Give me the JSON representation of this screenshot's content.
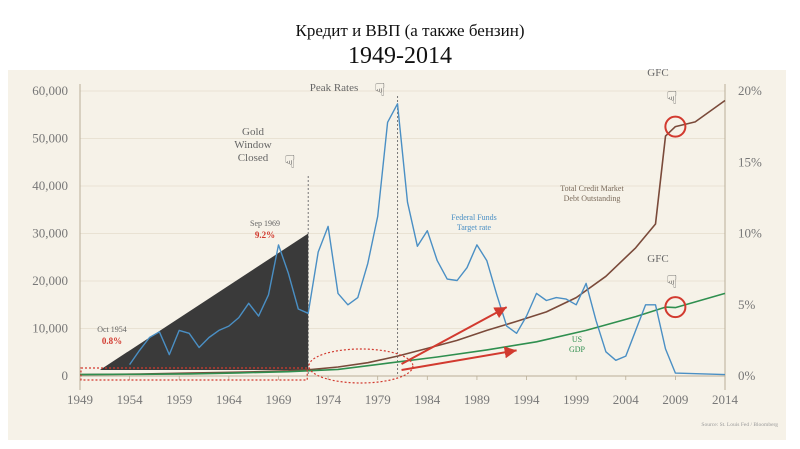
{
  "title": "Кредит и ВВП (а также бензин)",
  "subtitle": "1949-2014",
  "colors": {
    "background": "#f6f2e8",
    "credit": "#7a4a3a",
    "gdp": "#2f8f4f",
    "fed_funds": "#4a8fc4",
    "triangle": "#3a3a3a",
    "highlight": "#d23a2f"
  },
  "chart_data": {
    "type": "line",
    "x_ticks": [
      1949,
      1954,
      1959,
      1964,
      1969,
      1974,
      1979,
      1984,
      1989,
      1994,
      1999,
      2004,
      2009,
      2014
    ],
    "xlim": [
      1949,
      2014
    ],
    "y_left_ticks": [
      "0",
      "10,000",
      "20,000",
      "30,000",
      "40,000",
      "50,000",
      "60,000"
    ],
    "ylim_left": [
      0,
      60000
    ],
    "y_right_ticks": [
      "0%",
      "5%",
      "10%",
      "15%",
      "20%"
    ],
    "ylim_right": [
      0,
      20
    ],
    "series": [
      {
        "name": "Total Credit Market Debt Outstanding",
        "axis": "left",
        "points": [
          [
            1949,
            300
          ],
          [
            1955,
            400
          ],
          [
            1960,
            600
          ],
          [
            1965,
            800
          ],
          [
            1970,
            1100
          ],
          [
            1972,
            1300
          ],
          [
            1975,
            1900
          ],
          [
            1978,
            2800
          ],
          [
            1981,
            4200
          ],
          [
            1984,
            5800
          ],
          [
            1987,
            7500
          ],
          [
            1990,
            9600
          ],
          [
            1993,
            11500
          ],
          [
            1996,
            13500
          ],
          [
            1999,
            16500
          ],
          [
            2002,
            21000
          ],
          [
            2005,
            27000
          ],
          [
            2007,
            32000
          ],
          [
            2008,
            50500
          ],
          [
            2009,
            52500
          ],
          [
            2011,
            53500
          ],
          [
            2014,
            58000
          ]
        ]
      },
      {
        "name": "US GDP",
        "axis": "left",
        "points": [
          [
            1949,
            300
          ],
          [
            1955,
            350
          ],
          [
            1960,
            450
          ],
          [
            1965,
            650
          ],
          [
            1970,
            900
          ],
          [
            1975,
            1400
          ],
          [
            1980,
            2700
          ],
          [
            1985,
            4000
          ],
          [
            1990,
            5500
          ],
          [
            1995,
            7200
          ],
          [
            2000,
            9600
          ],
          [
            2005,
            12500
          ],
          [
            2008,
            14500
          ],
          [
            2009,
            14400
          ],
          [
            2014,
            17400
          ]
        ]
      },
      {
        "name": "Federal Funds Target rate",
        "axis": "right",
        "points": [
          [
            1954,
            0.8
          ],
          [
            1955,
            1.8
          ],
          [
            1956,
            2.7
          ],
          [
            1957,
            3.1
          ],
          [
            1958,
            1.5
          ],
          [
            1959,
            3.2
          ],
          [
            1960,
            3.0
          ],
          [
            1961,
            2.0
          ],
          [
            1962,
            2.7
          ],
          [
            1963,
            3.2
          ],
          [
            1964,
            3.5
          ],
          [
            1965,
            4.1
          ],
          [
            1966,
            5.1
          ],
          [
            1967,
            4.2
          ],
          [
            1968,
            5.7
          ],
          [
            1969,
            9.2
          ],
          [
            1970,
            7.2
          ],
          [
            1971,
            4.7
          ],
          [
            1972,
            4.4
          ],
          [
            1973,
            8.7
          ],
          [
            1974,
            10.5
          ],
          [
            1975,
            5.8
          ],
          [
            1976,
            5.0
          ],
          [
            1977,
            5.5
          ],
          [
            1978,
            7.9
          ],
          [
            1979,
            11.2
          ],
          [
            1980,
            17.8
          ],
          [
            1981,
            19.1
          ],
          [
            1982,
            12.2
          ],
          [
            1983,
            9.1
          ],
          [
            1984,
            10.2
          ],
          [
            1985,
            8.1
          ],
          [
            1986,
            6.8
          ],
          [
            1987,
            6.7
          ],
          [
            1988,
            7.6
          ],
          [
            1989,
            9.2
          ],
          [
            1990,
            8.1
          ],
          [
            1991,
            5.7
          ],
          [
            1992,
            3.5
          ],
          [
            1993,
            3.0
          ],
          [
            1994,
            4.2
          ],
          [
            1995,
            5.8
          ],
          [
            1996,
            5.3
          ],
          [
            1997,
            5.5
          ],
          [
            1998,
            5.4
          ],
          [
            1999,
            5.0
          ],
          [
            2000,
            6.5
          ],
          [
            2001,
            3.9
          ],
          [
            2002,
            1.7
          ],
          [
            2003,
            1.1
          ],
          [
            2004,
            1.4
          ],
          [
            2005,
            3.2
          ],
          [
            2006,
            5.0
          ],
          [
            2007,
            5.0
          ],
          [
            2008,
            1.9
          ],
          [
            2009,
            0.2
          ],
          [
            2014,
            0.1
          ]
        ]
      }
    ],
    "annotations": {
      "gold_window": "Gold\nWindow\nClosed",
      "peak_rates": "Peak Rates",
      "gfc_top": "GFC",
      "gfc_bottom": "GFC",
      "oct1954": "Oct 1954",
      "oct1954_value": "0.8%",
      "sep1969": "Sep 1969",
      "sep1969_value": "9.2%",
      "credit_label": "Total Credit Market\nDebt Outstanding",
      "fed_label": "Federal Funds\nTarget rate",
      "gdp_label": "US\nGDP",
      "source": "Source: St. Louis Fed / Bloomberg"
    }
  }
}
